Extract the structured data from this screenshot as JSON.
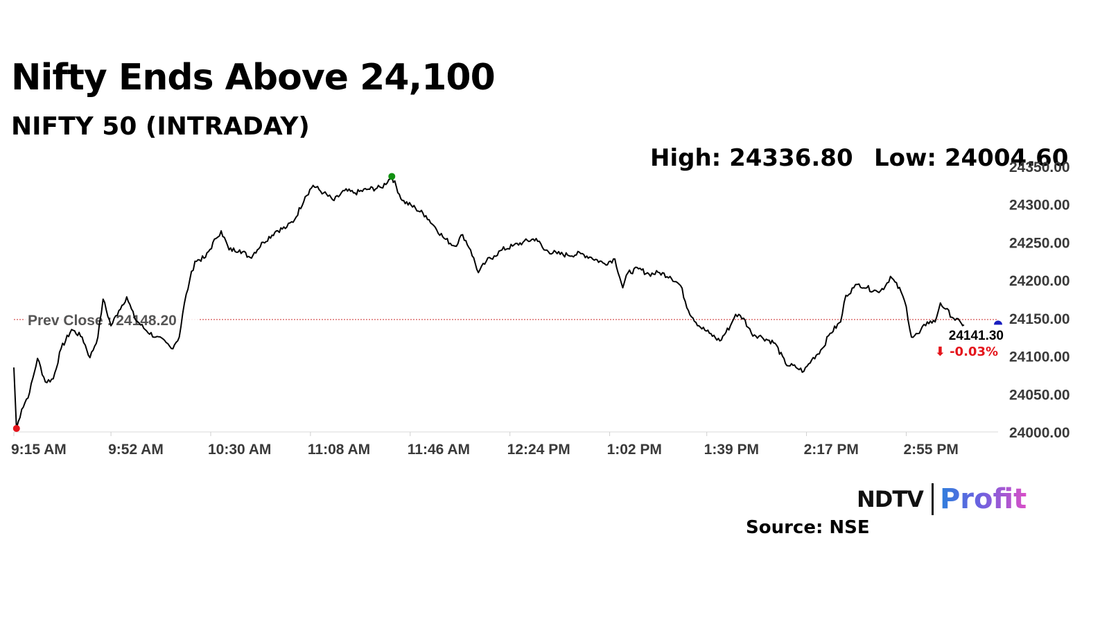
{
  "header": {
    "title": "Nifty Ends Above 24,100",
    "subtitle": "NIFTY 50 (INTRADAY)"
  },
  "stats": {
    "high_label": "High: 24336.80",
    "low_label": "Low: 24004.60"
  },
  "footer": {
    "logo_ndtv": "NDTV",
    "logo_profit": "Profit",
    "source": "Source: NSE"
  },
  "colors": {
    "line": "#000000",
    "prev_close": "#cc2a2a",
    "high_marker": "#119111",
    "low_marker": "#e4141b",
    "last_marker": "#1a1fbf",
    "change_negative": "#e4141b",
    "axis_text": "#3a3a3a"
  },
  "chart_data": {
    "type": "line",
    "title": "NIFTY 50 (INTRADAY)",
    "xlabel": "",
    "ylabel": "",
    "x_ticks": [
      "9:15 AM",
      "9:52 AM",
      "10:30 AM",
      "11:08 AM",
      "11:46 AM",
      "12:24 PM",
      "1:02 PM",
      "1:39 PM",
      "2:17 PM",
      "2:55 PM"
    ],
    "y_ticks": [
      24000,
      24050,
      24100,
      24150,
      24200,
      24250,
      24300,
      24350
    ],
    "y_tick_labels": [
      "24000.00",
      "24050.00",
      "24100.00",
      "24150.00",
      "24200.00",
      "24250.00",
      "24300.00",
      "24350.00"
    ],
    "xlim": [
      "9:15 AM",
      "3:30 PM"
    ],
    "ylim": [
      24000,
      24350
    ],
    "grid": false,
    "legend": "none",
    "prev_close": 24148.2,
    "prev_close_label": "Prev Close : 24148.20",
    "high": {
      "time": "11:39 AM",
      "value": 24336.8
    },
    "low": {
      "time": "9:16 AM",
      "value": 24004.6
    },
    "last": {
      "time": "3:30 PM",
      "value": 24141.3,
      "label": "24141.30",
      "change_label": "⬇ -0.03%"
    },
    "series": [
      {
        "name": "NIFTY 50",
        "points": [
          [
            "9:15 AM",
            24085
          ],
          [
            "9:16 AM",
            24004.6
          ],
          [
            "9:18 AM",
            24030
          ],
          [
            "9:21 AM",
            24052
          ],
          [
            "9:24 AM",
            24097
          ],
          [
            "9:27 AM",
            24066
          ],
          [
            "9:30 AM",
            24070
          ],
          [
            "9:33 AM",
            24110
          ],
          [
            "9:37 AM",
            24135
          ],
          [
            "9:41 AM",
            24125
          ],
          [
            "9:44 AM",
            24098
          ],
          [
            "9:47 AM",
            24125
          ],
          [
            "9:49 AM",
            24175
          ],
          [
            "9:52 AM",
            24140
          ],
          [
            "9:55 AM",
            24160
          ],
          [
            "9:58 AM",
            24178
          ],
          [
            "10:01 AM",
            24150
          ],
          [
            "10:05 AM",
            24135
          ],
          [
            "10:09 AM",
            24125
          ],
          [
            "10:13 AM",
            24118
          ],
          [
            "10:15 AM",
            24110
          ],
          [
            "10:18 AM",
            24125
          ],
          [
            "10:20 AM",
            24170
          ],
          [
            "10:22 AM",
            24200
          ],
          [
            "10:24 AM",
            24225
          ],
          [
            "10:28 AM",
            24230
          ],
          [
            "10:32 AM",
            24255
          ],
          [
            "10:34 AM",
            24265
          ],
          [
            "10:37 AM",
            24240
          ],
          [
            "10:41 AM",
            24240
          ],
          [
            "10:45 AM",
            24230
          ],
          [
            "10:50 AM",
            24250
          ],
          [
            "10:55 AM",
            24265
          ],
          [
            "10:59 AM",
            24270
          ],
          [
            "11:02 AM",
            24280
          ],
          [
            "11:06 AM",
            24310
          ],
          [
            "11:09 AM",
            24325
          ],
          [
            "11:13 AM",
            24315
          ],
          [
            "11:17 AM",
            24305
          ],
          [
            "11:21 AM",
            24318
          ],
          [
            "11:25 AM",
            24315
          ],
          [
            "11:30 AM",
            24320
          ],
          [
            "11:35 AM",
            24322
          ],
          [
            "11:39 AM",
            24336.8
          ],
          [
            "11:43 AM",
            24305
          ],
          [
            "11:48 AM",
            24295
          ],
          [
            "11:52 AM",
            24285
          ],
          [
            "11:55 AM",
            24272
          ],
          [
            "11:59 AM",
            24255
          ],
          [
            "12:03 PM",
            24245
          ],
          [
            "12:06 PM",
            24260
          ],
          [
            "12:09 PM",
            24240
          ],
          [
            "12:12 PM",
            24210
          ],
          [
            "12:15 PM",
            24225
          ],
          [
            "12:18 PM",
            24232
          ],
          [
            "12:21 PM",
            24240
          ],
          [
            "12:25 PM",
            24245
          ],
          [
            "12:29 PM",
            24250
          ],
          [
            "12:34 PM",
            24255
          ],
          [
            "12:37 PM",
            24240
          ],
          [
            "12:42 PM",
            24235
          ],
          [
            "12:46 PM",
            24233
          ],
          [
            "12:51 PM",
            24235
          ],
          [
            "12:55 PM",
            24230
          ],
          [
            "1:00 PM",
            24222
          ],
          [
            "1:04 PM",
            24228
          ],
          [
            "1:07 PM",
            24190
          ],
          [
            "1:09 PM",
            24210
          ],
          [
            "1:13 PM",
            24215
          ],
          [
            "1:17 PM",
            24208
          ],
          [
            "1:21 PM",
            24210
          ],
          [
            "1:25 PM",
            24205
          ],
          [
            "1:29 PM",
            24193
          ],
          [
            "1:32 PM",
            24160
          ],
          [
            "1:36 PM",
            24140
          ],
          [
            "1:40 PM",
            24130
          ],
          [
            "1:44 PM",
            24120
          ],
          [
            "1:48 PM",
            24140
          ],
          [
            "1:50 PM",
            24155
          ],
          [
            "1:53 PM",
            24150
          ],
          [
            "1:56 PM",
            24130
          ],
          [
            "2:00 PM",
            24125
          ],
          [
            "2:05 PM",
            24117
          ],
          [
            "2:09 PM",
            24090
          ],
          [
            "2:13 PM",
            24085
          ],
          [
            "2:16 PM",
            24080
          ],
          [
            "2:19 PM",
            24095
          ],
          [
            "2:23 PM",
            24110
          ],
          [
            "2:26 PM",
            24130
          ],
          [
            "2:30 PM",
            24145
          ],
          [
            "2:32 PM",
            24180
          ],
          [
            "2:35 PM",
            24190
          ],
          [
            "2:37 PM",
            24195
          ],
          [
            "2:40 PM",
            24190
          ],
          [
            "2:44 PM",
            24185
          ],
          [
            "2:47 PM",
            24192
          ],
          [
            "2:49 PM",
            24205
          ],
          [
            "2:53 PM",
            24185
          ],
          [
            "2:55 PM",
            24165
          ],
          [
            "2:57 PM",
            24125
          ],
          [
            "3:00 PM",
            24130
          ],
          [
            "3:03 PM",
            24145
          ],
          [
            "3:06 PM",
            24145
          ],
          [
            "3:08 PM",
            24170
          ],
          [
            "3:10 PM",
            24162
          ],
          [
            "3:13 PM",
            24150
          ],
          [
            "3:16 PM",
            24143
          ],
          [
            "3:17 PM",
            24141.3
          ]
        ]
      }
    ]
  }
}
